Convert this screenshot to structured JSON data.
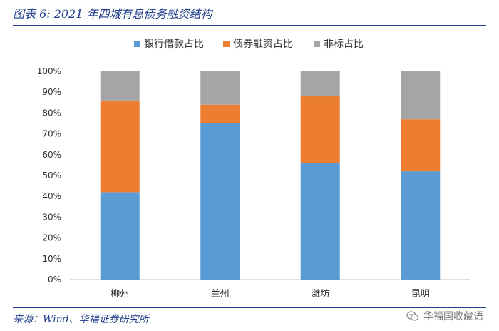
{
  "title": "图表 6:  2021 年四城有息债务融资结构",
  "source": "来源：Wind、华福证券研究所",
  "watermark": "华福国收藏语",
  "chart_data": {
    "type": "bar",
    "stacked": true,
    "categories": [
      "柳州",
      "兰州",
      "潍坊",
      "昆明"
    ],
    "series": [
      {
        "name": "银行借款占比",
        "color": "#5b9bd5",
        "values": [
          0.42,
          0.75,
          0.56,
          0.52
        ]
      },
      {
        "name": "债券融资占比",
        "color": "#ed7d31",
        "values": [
          0.44,
          0.09,
          0.32,
          0.25
        ]
      },
      {
        "name": "非标占比",
        "color": "#a5a5a5",
        "values": [
          0.14,
          0.16,
          0.12,
          0.23
        ]
      }
    ],
    "yticks": [
      "0%",
      "10%",
      "20%",
      "30%",
      "40%",
      "50%",
      "60%",
      "70%",
      "80%",
      "90%",
      "100%"
    ],
    "ylim": [
      0,
      1
    ],
    "legend_position": "top-center",
    "grid": false
  }
}
